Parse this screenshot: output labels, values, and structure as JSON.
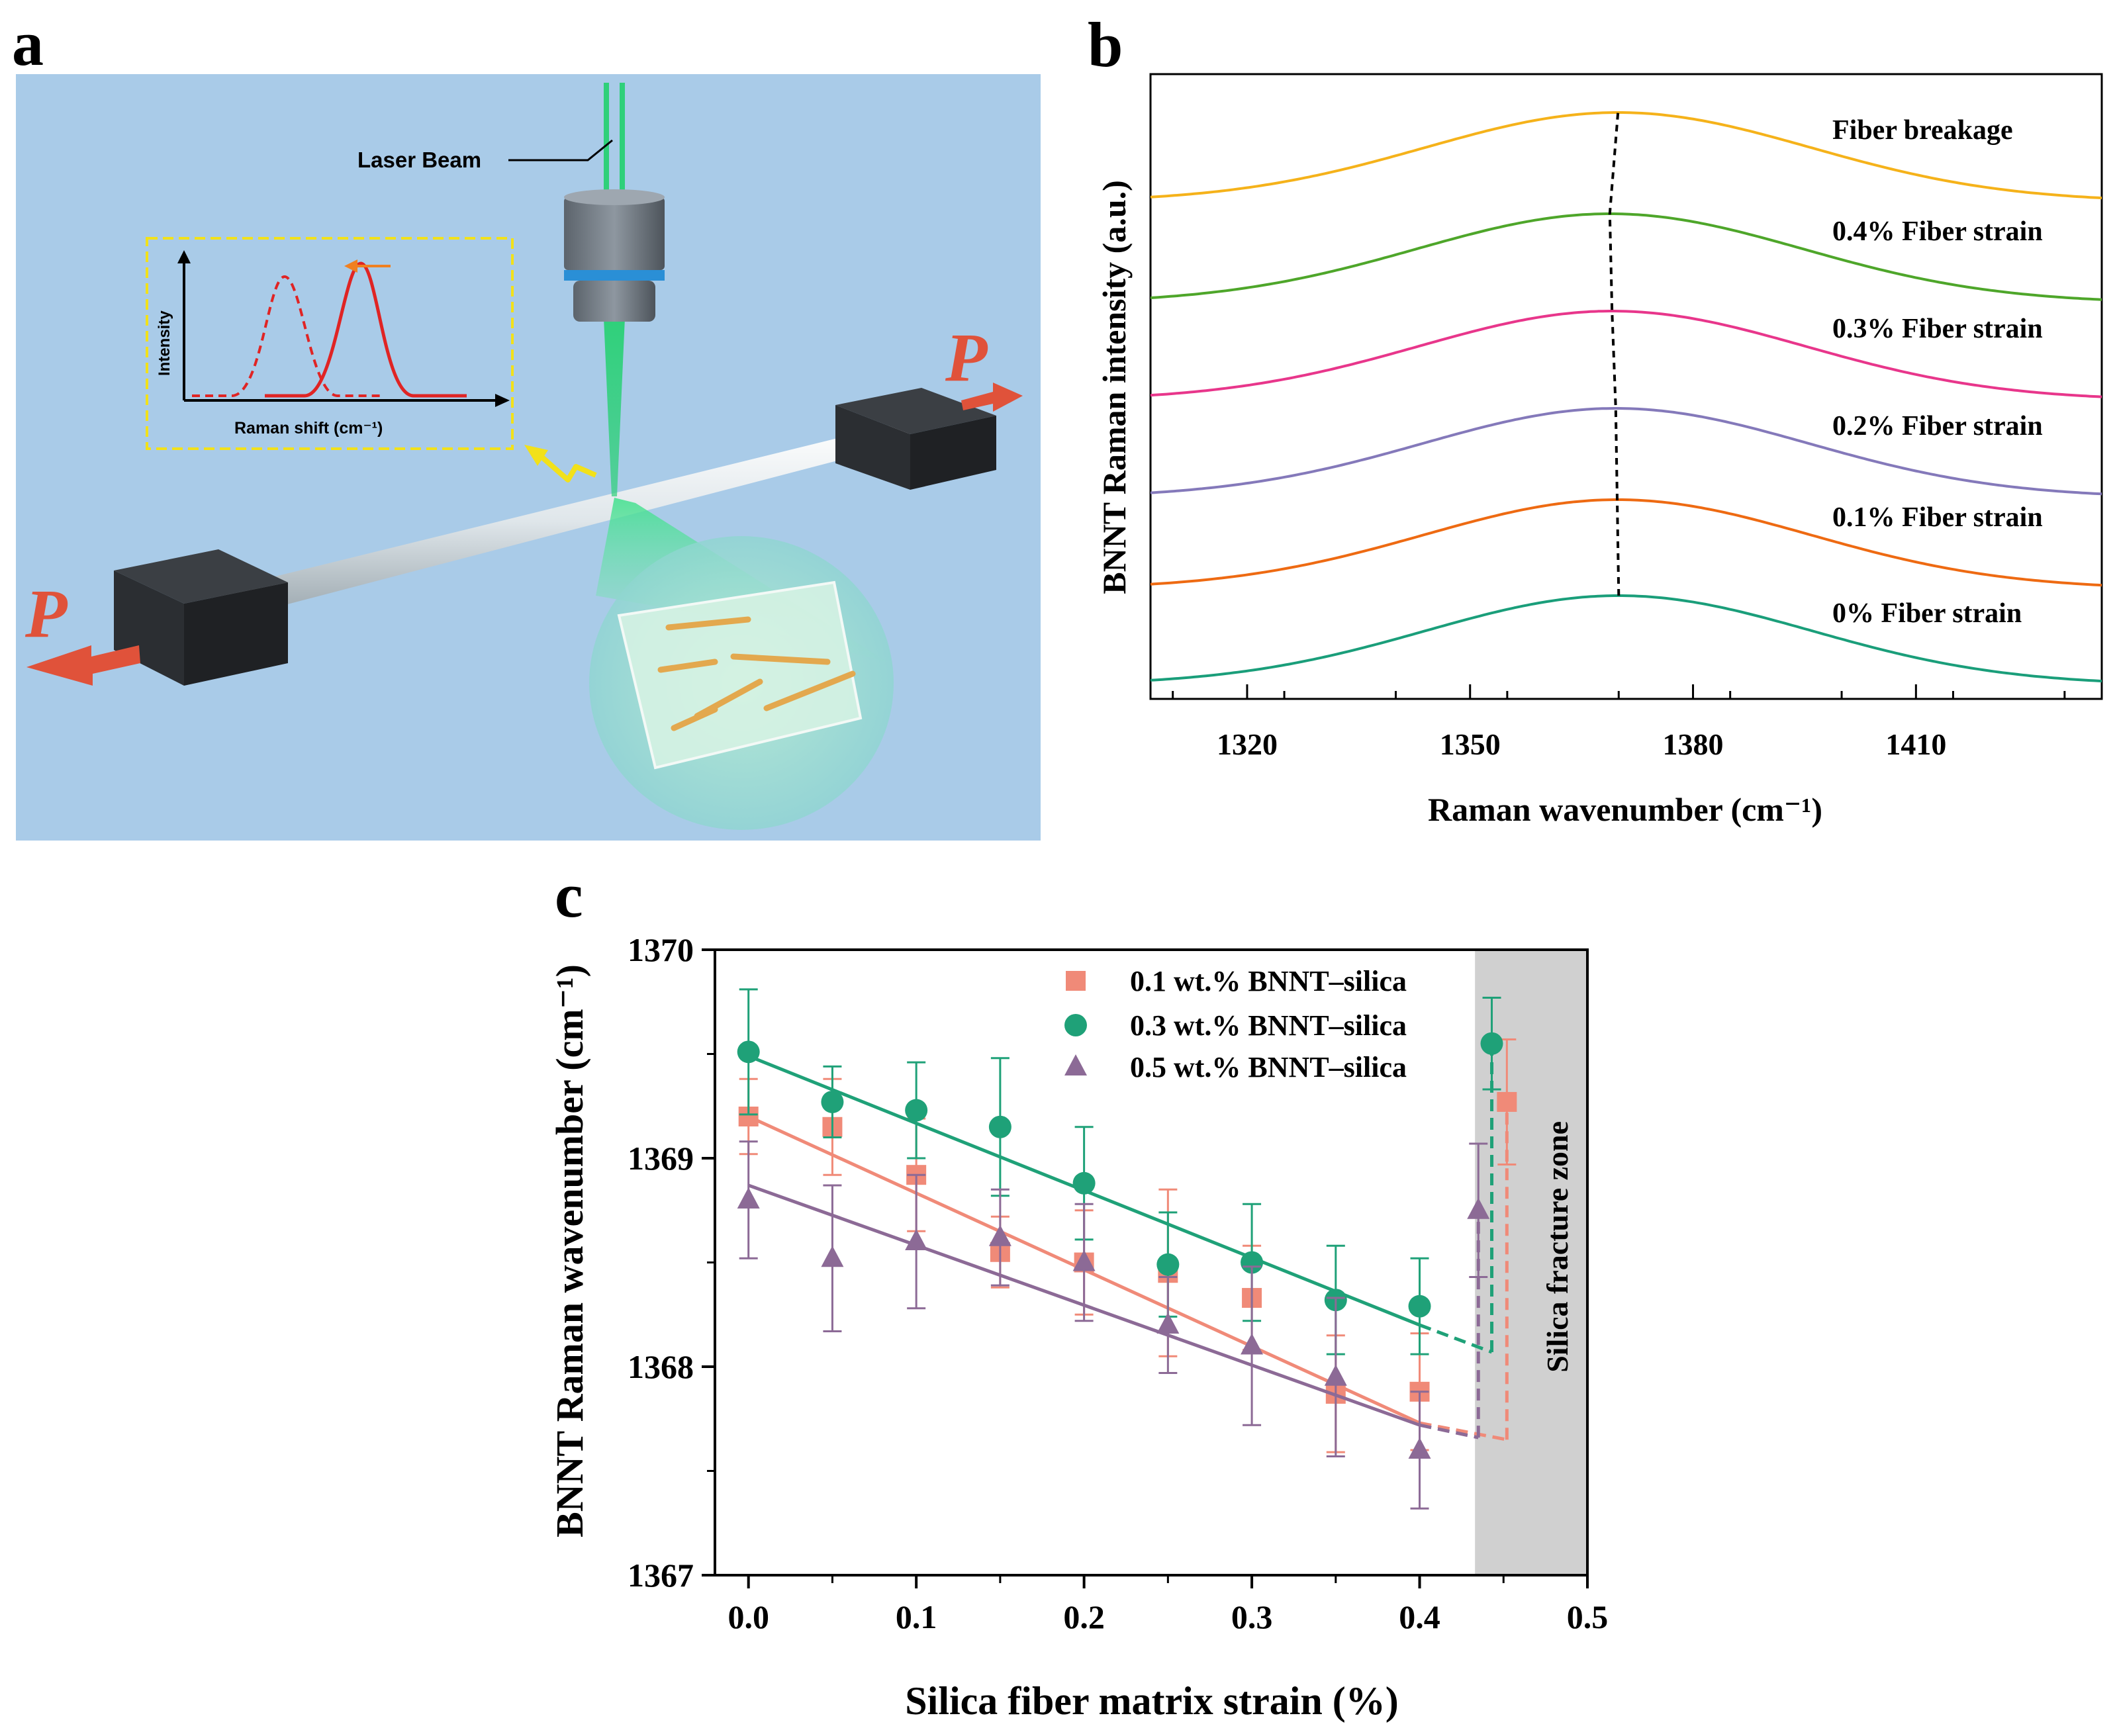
{
  "panels": {
    "a": {
      "letter": "a",
      "laser_label": "Laser Beam",
      "inset_ylabel": "Intensity",
      "inset_xlabel": "Raman shift (cm⁻¹)",
      "force_left": "P",
      "force_right": "P",
      "colors": {
        "background": "#a9cbe8",
        "inset_box": "#f2e11a",
        "force": "#e0523a",
        "beam": "#2fd07a"
      }
    },
    "b": {
      "letter": "b"
    },
    "c": {
      "letter": "c"
    }
  },
  "chart_data": [
    {
      "type": "line",
      "panel": "b",
      "xlabel": "Raman wavenumber (cm⁻¹)",
      "ylabel": "BNNT Raman intensity (a.u.)",
      "xlim": [
        1307,
        1435
      ],
      "xticks": [
        1320,
        1350,
        1380,
        1410
      ],
      "yticks_shown": false,
      "peak_shift_marker": "dashed line",
      "series": [
        {
          "name": "0% Fiber strain",
          "peak": 1370.0,
          "color": "#1a9e7a"
        },
        {
          "name": "0.1% Fiber strain",
          "peak": 1369.8,
          "color": "#ee6a12"
        },
        {
          "name": "0.2% Fiber strain",
          "peak": 1369.6,
          "color": "#8479ba"
        },
        {
          "name": "0.3% Fiber strain",
          "peak": 1369.1,
          "color": "#e8368b"
        },
        {
          "name": "0.4% Fiber strain",
          "peak": 1368.8,
          "color": "#4ea62a"
        },
        {
          "name": "Fiber breakage",
          "peak": 1369.9,
          "color": "#f5b21a"
        }
      ]
    },
    {
      "type": "scatter",
      "panel": "c",
      "xlabel": "Silica fiber matrix strain (%)",
      "ylabel": "BNNT Raman wavenumber (cm⁻¹)",
      "xlim": [
        -0.02,
        0.5
      ],
      "ylim": [
        1367,
        1370
      ],
      "xticks": [
        0.0,
        0.1,
        0.2,
        0.3,
        0.4,
        0.5
      ],
      "yticks": [
        1367,
        1368,
        1369,
        1370
      ],
      "x_tick_labels": [
        "0.0",
        "0.1",
        "0.2",
        "0.3",
        "0.4",
        "0.5"
      ],
      "shaded_region": {
        "label": "Silica fracture zone",
        "x_range": [
          0.433,
          0.5
        ],
        "color": "#d0d0d0"
      },
      "legend_position": "top-right",
      "series": [
        {
          "name": "0.1 wt.% BNNT–silica",
          "marker": "square",
          "color": "#f08a78",
          "x": [
            0.0,
            0.05,
            0.1,
            0.15,
            0.2,
            0.25,
            0.3,
            0.35,
            0.4
          ],
          "y": [
            1369.2,
            1369.15,
            1368.92,
            1368.55,
            1368.5,
            1368.45,
            1368.33,
            1367.87,
            1367.88
          ],
          "err": [
            0.18,
            0.23,
            0.27,
            0.17,
            0.25,
            0.4,
            0.25,
            0.28,
            0.28
          ],
          "fit": [
            1369.2,
            1367.73
          ],
          "fracture_point": {
            "x": 0.452,
            "y": 1369.27,
            "err": 0.3
          },
          "fracture_drop_from_y": 1367.65
        },
        {
          "name": "0.3 wt.% BNNT–silica",
          "marker": "circle",
          "color": "#1fa178",
          "x": [
            0.0,
            0.05,
            0.1,
            0.15,
            0.2,
            0.25,
            0.3,
            0.35,
            0.4
          ],
          "y": [
            1369.51,
            1369.27,
            1369.23,
            1369.15,
            1368.88,
            1368.49,
            1368.5,
            1368.32,
            1368.29
          ],
          "err": [
            0.3,
            0.17,
            0.23,
            0.33,
            0.27,
            0.25,
            0.28,
            0.26,
            0.23
          ],
          "fit": [
            1369.49,
            1368.2
          ],
          "fracture_point": {
            "x": 0.443,
            "y": 1369.55,
            "err": 0.22
          },
          "fracture_drop_from_y": 1368.07
        },
        {
          "name": "0.5 wt.% BNNT–silica",
          "marker": "triangle",
          "color": "#8c6a96",
          "x": [
            0.0,
            0.05,
            0.1,
            0.15,
            0.2,
            0.25,
            0.3,
            0.35,
            0.4
          ],
          "y": [
            1368.8,
            1368.52,
            1368.6,
            1368.62,
            1368.5,
            1368.2,
            1368.1,
            1367.95,
            1367.6
          ],
          "err": [
            0.28,
            0.35,
            0.32,
            0.23,
            0.28,
            0.23,
            0.38,
            0.38,
            0.28
          ],
          "fit": [
            1368.87,
            1367.72
          ],
          "fracture_point": {
            "x": 0.435,
            "y": 1368.75,
            "err": 0.32
          },
          "fracture_drop_from_y": 1367.66
        }
      ]
    }
  ]
}
